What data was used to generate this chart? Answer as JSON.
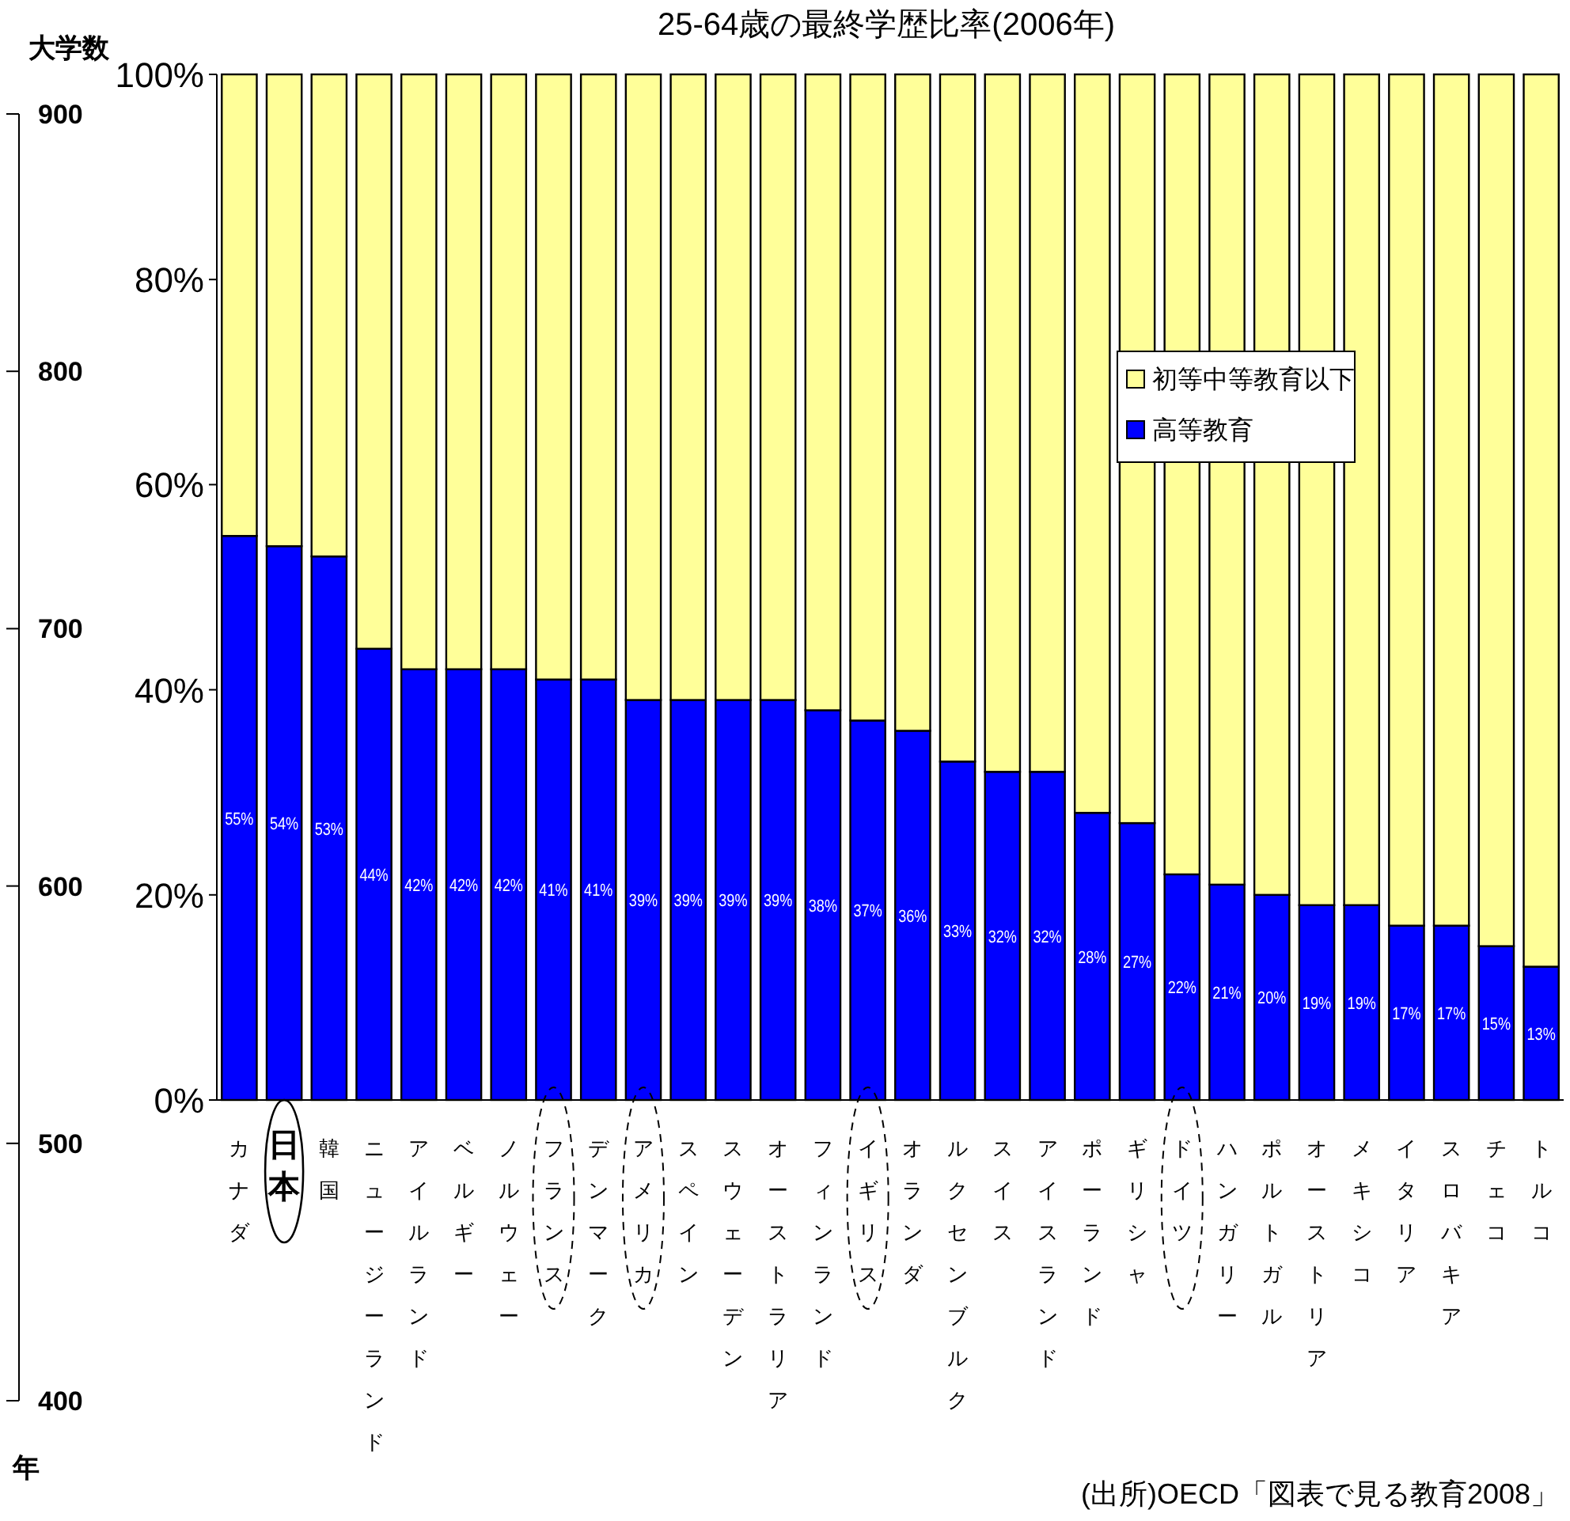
{
  "chart_data": {
    "type": "bar",
    "title": "25-64歳の最終学歴比率(2006年)",
    "stacked": true,
    "legend": "right",
    "categories": [
      "カナダ",
      "日本",
      "韓国",
      "ニュージーランド",
      "アイルランド",
      "ベルギー",
      "ノルウェー",
      "フランス",
      "デンマーク",
      "アメリカ",
      "スペイン",
      "スウェーデン",
      "オーストラリア",
      "フィンランド",
      "イギリス",
      "オランダ",
      "ルクセンブルク",
      "スイス",
      "アイスランド",
      "ポーランド",
      "ギリシャ",
      "ドイツ",
      "ハンガリー",
      "ポルトガル",
      "オーストリア",
      "メキシコ",
      "イタリア",
      "スロバキア",
      "チェコ",
      "トルコ"
    ],
    "series": [
      {
        "name": "高等教育",
        "color": "#0000ff",
        "values": [
          55,
          54,
          53,
          44,
          42,
          42,
          42,
          41,
          41,
          39,
          39,
          39,
          39,
          38,
          37,
          36,
          33,
          32,
          32,
          28,
          27,
          22,
          21,
          20,
          19,
          19,
          17,
          17,
          15,
          13
        ],
        "value_labels": [
          "55%",
          "54%",
          "53%",
          "44%",
          "42%",
          "42%",
          "42%",
          "41%",
          "41%",
          "39%",
          "39%",
          "39%",
          "39%",
          "38%",
          "37%",
          "36%",
          "33%",
          "32%",
          "32%",
          "28%",
          "27%",
          "22%",
          "21%",
          "20%",
          "19%",
          "19%",
          "17%",
          "17%",
          "15%",
          "13%"
        ]
      },
      {
        "name": "初等中等教育以下",
        "color": "#ffff99",
        "values": [
          45,
          46,
          47,
          56,
          58,
          58,
          58,
          59,
          59,
          61,
          61,
          61,
          61,
          62,
          63,
          64,
          67,
          68,
          68,
          72,
          73,
          78,
          79,
          80,
          81,
          81,
          83,
          83,
          85,
          87
        ]
      }
    ],
    "ylim": [
      0,
      100
    ],
    "yticks": [
      {
        "value": 0,
        "label": "0%"
      },
      {
        "value": 20,
        "label": "20%"
      },
      {
        "value": 40,
        "label": "40%"
      },
      {
        "value": 60,
        "label": "60%"
      },
      {
        "value": 80,
        "label": "80%"
      },
      {
        "value": 100,
        "label": "100%"
      }
    ],
    "y2label": "大学数",
    "y2lim": [
      400,
      900
    ],
    "y2ticks": [
      400,
      500,
      600,
      700,
      800,
      900
    ],
    "annotations": [
      "年",
      "(出所)OECD「図表で見る教育2008」"
    ]
  }
}
